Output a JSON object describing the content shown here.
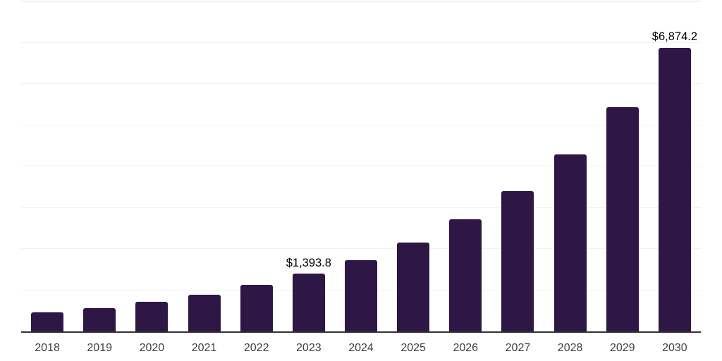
{
  "chart_data": {
    "type": "bar",
    "title": "",
    "xlabel": "",
    "ylabel": "",
    "categories": [
      "2018",
      "2019",
      "2020",
      "2021",
      "2022",
      "2023",
      "2024",
      "2025",
      "2026",
      "2027",
      "2028",
      "2029",
      "2030"
    ],
    "values": [
      455,
      560,
      710,
      885,
      1130,
      1393.8,
      1735,
      2160,
      2710,
      3400,
      4290,
      5430,
      6874.2
    ],
    "value_labels": {
      "2023": "$1,393.8",
      "2030": "$6,874.2"
    },
    "ylim": [
      0,
      8000
    ],
    "gridline_interval": 1000,
    "grid": true,
    "legend": false,
    "y_tick_labels_visible": false,
    "colors": {
      "bar": "#2e1745",
      "axis": "#333333",
      "gridline": "#f2f2f2",
      "top_gridline": "#d9d9d9",
      "value_label": "#000000",
      "tick_label": "#404040",
      "background": "#ffffff"
    }
  }
}
